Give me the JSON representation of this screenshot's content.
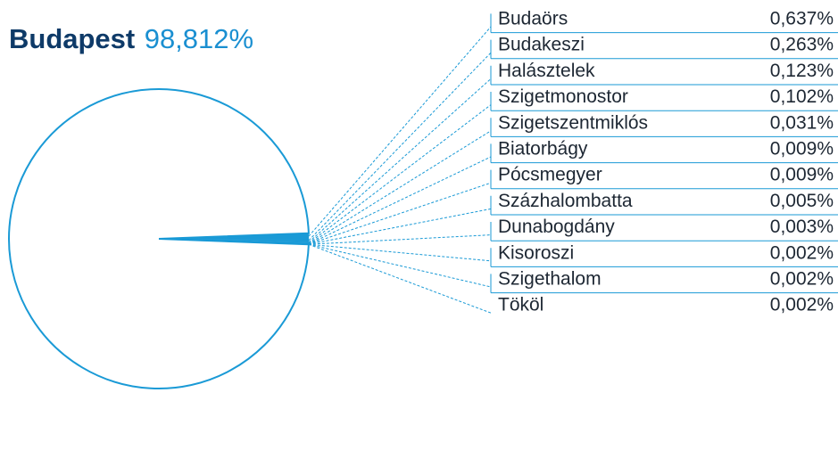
{
  "chart_data": {
    "type": "pie",
    "categories": [
      "Budapest",
      "Budaörs",
      "Budakeszi",
      "Halásztelek",
      "Szigetmonostor",
      "Szigetszentmiklós",
      "Biatorbágy",
      "Pócsmegyer",
      "Százhalombatta",
      "Dunabogdány",
      "Kisoroszi",
      "Szigethalom",
      "Tököl"
    ],
    "values": [
      98.812,
      0.637,
      0.263,
      0.123,
      0.102,
      0.031,
      0.009,
      0.009,
      0.005,
      0.003,
      0.002,
      0.002,
      0.002
    ],
    "value_labels": [
      "98,812%",
      "0,637%",
      "0,263%",
      "0,123%",
      "0,102%",
      "0,031%",
      "0,009%",
      "0,009%",
      "0,005%",
      "0,003%",
      "0,002%",
      "0,002%",
      "0,002%"
    ],
    "color": "#1a9ad6"
  }
}
